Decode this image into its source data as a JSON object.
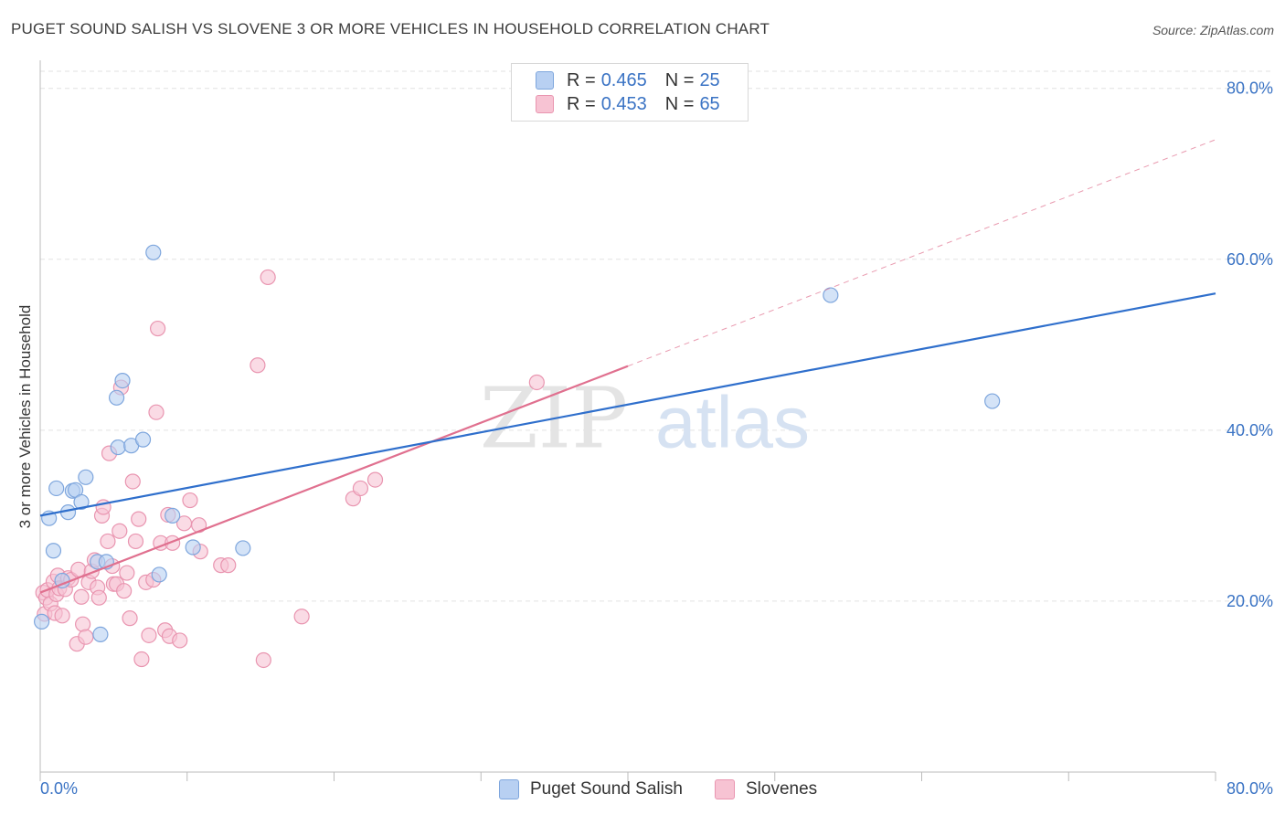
{
  "title": "PUGET SOUND SALISH VS SLOVENE 3 OR MORE VEHICLES IN HOUSEHOLD CORRELATION CHART",
  "source": "Source: ZipAtlas.com",
  "watermark": {
    "zip": "ZIP",
    "atlas": "atlas"
  },
  "colors": {
    "blue_fill": "#b8d0f2",
    "blue_stroke": "#7ea6dd",
    "blue_line": "#2f6fcc",
    "pink_fill": "#f7c3d3",
    "pink_stroke": "#e995b0",
    "pink_line": "#e0708f",
    "axis_label": "#3a73c4",
    "grid": "#e2e2e2"
  },
  "legend": {
    "rows": [
      {
        "r_label": "R =",
        "r_value": "0.465",
        "n_label": "N =",
        "n_value": "25"
      },
      {
        "r_label": "R =",
        "r_value": "0.453",
        "n_label": "N =",
        "n_value": "65"
      }
    ]
  },
  "bottom_legend": [
    "Puget Sound Salish",
    "Slovenes"
  ],
  "chart_data": {
    "type": "scatter",
    "xlabel": "",
    "ylabel": "3 or more Vehicles in Household",
    "xlim": [
      0,
      80
    ],
    "ylim": [
      0,
      82
    ],
    "x_tick_labels": [
      "0.0%",
      "80.0%"
    ],
    "y_tick_labels": [
      "20.0%",
      "40.0%",
      "60.0%",
      "80.0%"
    ],
    "y_ticks": [
      20,
      40,
      60,
      80
    ],
    "grid": true,
    "legend_position": "top-center",
    "series": [
      {
        "name": "Puget Sound Salish",
        "points": [
          [
            0.1,
            17.6
          ],
          [
            0.6,
            29.7
          ],
          [
            0.9,
            25.9
          ],
          [
            1.1,
            33.2
          ],
          [
            1.5,
            22.4
          ],
          [
            1.9,
            30.4
          ],
          [
            2.2,
            32.9
          ],
          [
            2.4,
            33.0
          ],
          [
            2.8,
            31.6
          ],
          [
            3.1,
            34.5
          ],
          [
            3.9,
            24.6
          ],
          [
            4.1,
            16.1
          ],
          [
            4.5,
            24.6
          ],
          [
            5.2,
            43.8
          ],
          [
            5.3,
            38.0
          ],
          [
            5.6,
            45.8
          ],
          [
            6.2,
            38.2
          ],
          [
            7.0,
            38.9
          ],
          [
            7.7,
            60.8
          ],
          [
            8.1,
            23.1
          ],
          [
            9.0,
            30.0
          ],
          [
            10.4,
            26.3
          ],
          [
            13.8,
            26.2
          ],
          [
            53.8,
            55.8
          ],
          [
            64.8,
            43.4
          ]
        ],
        "trend": {
          "x": [
            0,
            80
          ],
          "y": [
            30.0,
            56.0
          ]
        }
      },
      {
        "name": "Slovenes",
        "points": [
          [
            0.2,
            21.0
          ],
          [
            0.3,
            18.5
          ],
          [
            0.4,
            20.4
          ],
          [
            0.5,
            21.3
          ],
          [
            0.7,
            19.7
          ],
          [
            0.9,
            22.3
          ],
          [
            1.0,
            18.6
          ],
          [
            1.1,
            20.8
          ],
          [
            1.2,
            23.0
          ],
          [
            1.3,
            21.5
          ],
          [
            1.5,
            18.3
          ],
          [
            1.7,
            21.4
          ],
          [
            1.9,
            22.7
          ],
          [
            2.1,
            22.5
          ],
          [
            2.5,
            15.0
          ],
          [
            2.6,
            23.7
          ],
          [
            2.8,
            20.5
          ],
          [
            2.9,
            17.3
          ],
          [
            3.1,
            15.8
          ],
          [
            3.3,
            22.2
          ],
          [
            3.5,
            23.5
          ],
          [
            3.7,
            24.8
          ],
          [
            3.9,
            21.6
          ],
          [
            4.0,
            20.4
          ],
          [
            4.2,
            30.0
          ],
          [
            4.3,
            31.0
          ],
          [
            4.6,
            27.0
          ],
          [
            4.7,
            37.3
          ],
          [
            4.9,
            24.1
          ],
          [
            5.0,
            22.0
          ],
          [
            5.2,
            22.0
          ],
          [
            5.4,
            28.2
          ],
          [
            5.5,
            45.0
          ],
          [
            5.7,
            21.2
          ],
          [
            5.9,
            23.3
          ],
          [
            6.1,
            18.0
          ],
          [
            6.3,
            34.0
          ],
          [
            6.5,
            27.0
          ],
          [
            6.7,
            29.6
          ],
          [
            6.9,
            13.2
          ],
          [
            7.2,
            22.2
          ],
          [
            7.4,
            16.0
          ],
          [
            7.7,
            22.5
          ],
          [
            7.9,
            42.1
          ],
          [
            8.0,
            51.9
          ],
          [
            8.2,
            26.8
          ],
          [
            8.5,
            16.6
          ],
          [
            8.7,
            30.1
          ],
          [
            8.8,
            15.9
          ],
          [
            9.0,
            26.8
          ],
          [
            9.5,
            15.4
          ],
          [
            9.8,
            29.1
          ],
          [
            10.2,
            31.8
          ],
          [
            10.8,
            28.9
          ],
          [
            10.9,
            25.8
          ],
          [
            12.3,
            24.2
          ],
          [
            12.8,
            24.2
          ],
          [
            14.8,
            47.6
          ],
          [
            15.2,
            13.1
          ],
          [
            15.5,
            57.9
          ],
          [
            17.8,
            18.2
          ],
          [
            21.3,
            32.0
          ],
          [
            21.8,
            33.2
          ],
          [
            22.8,
            34.2
          ],
          [
            33.8,
            45.6
          ]
        ],
        "trend": {
          "x": [
            0,
            40
          ],
          "y": [
            21.0,
            47.5
          ]
        },
        "trend_dashed": {
          "x": [
            40,
            80
          ],
          "y": [
            47.5,
            74.0
          ]
        }
      }
    ]
  }
}
